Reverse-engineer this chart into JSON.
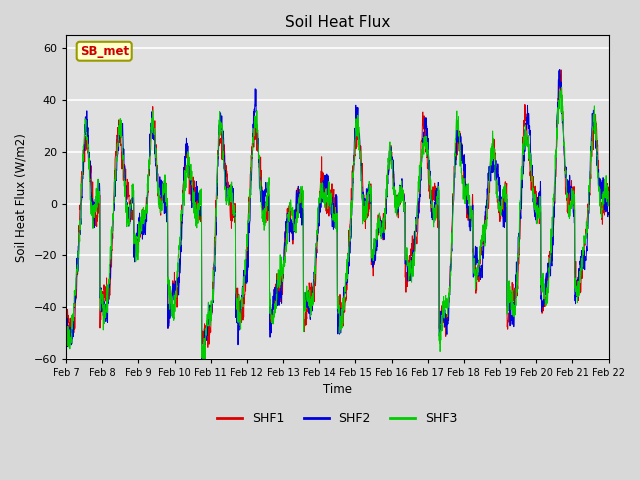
{
  "title": "Soil Heat Flux",
  "ylabel": "Soil Heat Flux (W/m2)",
  "xlabel": "Time",
  "ylim": [
    -60,
    65
  ],
  "fig_bg_color": "#d8d8d8",
  "plot_bg_color": "#e0e0e0",
  "grid_color": "white",
  "annotation_text": "SB_met",
  "annotation_fg": "#cc0000",
  "annotation_bg": "#ffffcc",
  "annotation_border": "#999900",
  "series_colors": [
    "#dd0000",
    "#0000dd",
    "#00cc00"
  ],
  "series_labels": [
    "SHF1",
    "SHF2",
    "SHF3"
  ],
  "x_tick_labels": [
    "Feb 7",
    "Feb 8",
    "Feb 9",
    "Feb 10",
    "Feb 11",
    "Feb 12",
    "Feb 13",
    "Feb 14",
    "Feb 15",
    "Feb 16",
    "Feb 17",
    "Feb 18",
    "Feb 19",
    "Feb 20",
    "Feb 21",
    "Feb 22"
  ],
  "n_days": 16,
  "points_per_day": 144
}
